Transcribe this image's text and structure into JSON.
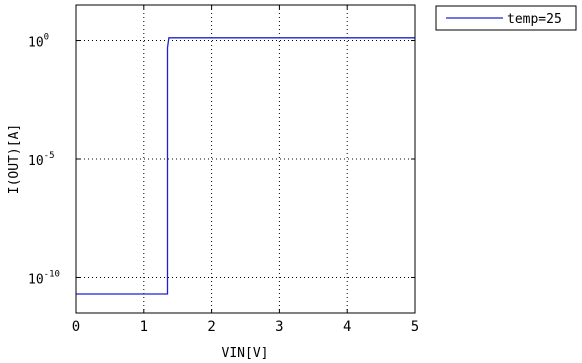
{
  "chart_data": {
    "type": "line",
    "xlabel": "VIN[V]",
    "ylabel": "I(OUT)[A]",
    "xlim": [
      0,
      5
    ],
    "ylim_log10": [
      -11.5,
      1.5
    ],
    "yscale": "log",
    "grid": true,
    "grid_style": "dotted",
    "legend_position": "outside-right-top",
    "x_ticks": [
      {
        "value": 0,
        "label": "0"
      },
      {
        "value": 1,
        "label": "1"
      },
      {
        "value": 2,
        "label": "2"
      },
      {
        "value": 3,
        "label": "3"
      },
      {
        "value": 4,
        "label": "4"
      },
      {
        "value": 5,
        "label": "5"
      }
    ],
    "y_ticks": [
      {
        "exp": 0,
        "base": "10",
        "sup": "0"
      },
      {
        "exp": -5,
        "base": "10",
        "sup": "-5"
      },
      {
        "exp": -10,
        "base": "10",
        "sup": "-10"
      }
    ],
    "series": [
      {
        "name": "temp=25",
        "color": "#2020d0",
        "points": [
          {
            "x": 0,
            "y": 2e-11
          },
          {
            "x": 1.35,
            "y": 2e-11
          },
          {
            "x": 1.35,
            "y": 0.5
          },
          {
            "x": 1.37,
            "y": 1.3
          },
          {
            "x": 5,
            "y": 1.3
          }
        ]
      }
    ]
  }
}
